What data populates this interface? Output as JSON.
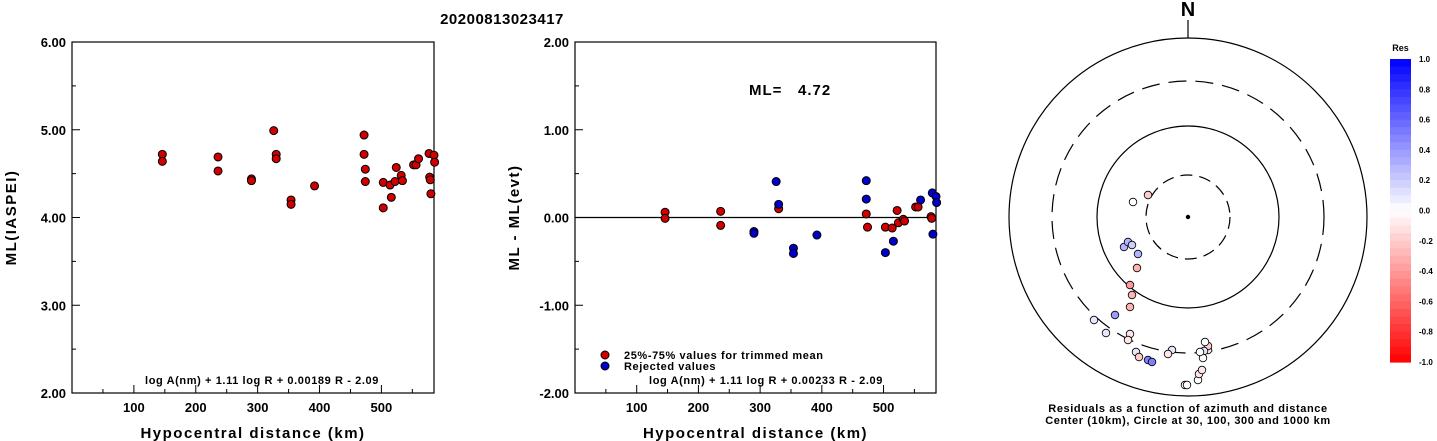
{
  "page_title": "20200813023417",
  "chart_data": [
    {
      "type": "scatter",
      "title": "",
      "xlabel": "Hypocentral distance (km)",
      "ylabel": "ML(IASPEI)",
      "xlim": [
        0,
        585
      ],
      "ylim": [
        2.0,
        6.0
      ],
      "x_ticks": [
        "100",
        "200",
        "300",
        "400",
        "500"
      ],
      "y_ticks": [
        "6.00",
        "5.00",
        "4.00",
        "3.00",
        "2.00"
      ],
      "formula": "log A(nm) + 1.11 log R + 0.00189 R - 2.09",
      "series": [
        {
          "color": "#d00000",
          "points": [
            [
              146,
              4.72
            ],
            [
              146,
              4.64
            ],
            [
              236,
              4.69
            ],
            [
              236,
              4.53
            ],
            [
              290,
              4.44
            ],
            [
              290,
              4.42
            ],
            [
              326,
              4.99
            ],
            [
              330,
              4.72
            ],
            [
              330,
              4.67
            ],
            [
              354,
              4.2
            ],
            [
              354,
              4.15
            ],
            [
              392,
              4.36
            ],
            [
              472,
              4.94
            ],
            [
              472,
              4.72
            ],
            [
              474,
              4.55
            ],
            [
              474,
              4.41
            ],
            [
              503,
              4.4
            ],
            [
              503,
              4.11
            ],
            [
              514,
              4.37
            ],
            [
              516,
              4.23
            ],
            [
              522,
              4.41
            ],
            [
              524,
              4.57
            ],
            [
              532,
              4.48
            ],
            [
              534,
              4.42
            ],
            [
              552,
              4.6
            ],
            [
              556,
              4.6
            ],
            [
              560,
              4.67
            ],
            [
              577,
              4.73
            ],
            [
              578,
              4.46
            ],
            [
              579,
              4.43
            ],
            [
              580,
              4.27
            ],
            [
              585,
              4.71
            ],
            [
              586,
              4.63
            ]
          ]
        }
      ]
    },
    {
      "type": "scatter",
      "title": "",
      "xlabel": "Hypocentral distance (km)",
      "ylabel": "ML - ML(evt)",
      "xlim": [
        0,
        585
      ],
      "ylim": [
        -2.0,
        2.0
      ],
      "x_ticks": [
        "100",
        "200",
        "300",
        "400",
        "500"
      ],
      "y_ticks": [
        "2.00",
        "1.00",
        "0.00",
        "-1.00",
        "-2.00"
      ],
      "ml_label": "ML=",
      "ml_value": "4.72",
      "formula": "log A(nm) + 1.11 log R + 0.00233 R - 2.09",
      "legend_position": "bottom-left",
      "series": [
        {
          "name": "25%-75% values for trimmed mean",
          "color": "#d00000",
          "points": [
            [
              146,
              0.06
            ],
            [
              146,
              -0.01
            ],
            [
              236,
              0.07
            ],
            [
              236,
              -0.09
            ],
            [
              330,
              0.1
            ],
            [
              472,
              0.04
            ],
            [
              474,
              -0.11
            ],
            [
              503,
              -0.11
            ],
            [
              514,
              -0.12
            ],
            [
              522,
              0.08
            ],
            [
              524,
              -0.06
            ],
            [
              532,
              -0.02
            ],
            [
              534,
              -0.04
            ],
            [
              552,
              0.12
            ],
            [
              556,
              0.12
            ],
            [
              577,
              0.01
            ],
            [
              578,
              -0.01
            ]
          ]
        },
        {
          "name": "Rejected values",
          "color": "#0000cc",
          "points": [
            [
              290,
              -0.16
            ],
            [
              290,
              -0.18
            ],
            [
              326,
              0.41
            ],
            [
              330,
              0.15
            ],
            [
              354,
              -0.35
            ],
            [
              354,
              -0.41
            ],
            [
              392,
              -0.2
            ],
            [
              472,
              0.42
            ],
            [
              472,
              0.21
            ],
            [
              503,
              -0.4
            ],
            [
              516,
              -0.27
            ],
            [
              560,
              0.2
            ],
            [
              579,
              0.28
            ],
            [
              580,
              -0.19
            ],
            [
              585,
              0.24
            ],
            [
              586,
              0.17
            ]
          ]
        }
      ]
    },
    {
      "type": "scatter",
      "title": "",
      "north_label": "N",
      "caption_line1": "Residuals as a function of azimuth and distance",
      "caption_line2": "Center (10km), Circle at 30, 100, 300 and 1000 km",
      "colorbar_title": "Res",
      "colorbar_ticks": [
        "1.0",
        "0.8",
        "0.6",
        "0.4",
        "0.2",
        "0.0",
        "-0.2",
        "-0.4",
        "-0.6",
        "-0.8",
        "-1.0"
      ],
      "points_xy": [
        [
          -55,
          15
        ],
        [
          -40,
          22
        ],
        [
          -64,
          -30
        ],
        [
          -60,
          -25
        ],
        [
          -56,
          -28
        ],
        [
          -50,
          -37
        ],
        [
          -51,
          -51
        ],
        [
          -58,
          -68
        ],
        [
          -56,
          -78
        ],
        [
          -58,
          -90
        ],
        [
          -73,
          -98
        ],
        [
          -94,
          -103
        ],
        [
          -82,
          -116
        ],
        [
          -58,
          -117
        ],
        [
          -60,
          -123
        ],
        [
          -52,
          -135
        ],
        [
          -49,
          -140
        ],
        [
          -40,
          -143
        ],
        [
          -36,
          -145
        ],
        [
          -3,
          -168
        ],
        [
          -1,
          -168
        ],
        [
          10,
          -163
        ],
        [
          11,
          -157
        ],
        [
          14,
          -153
        ],
        [
          20,
          -133
        ],
        [
          20,
          -129
        ],
        [
          17,
          -125
        ],
        [
          16,
          -134
        ],
        [
          -16,
          -133
        ],
        [
          -20,
          -137
        ],
        [
          15,
          -141
        ],
        [
          12,
          -135
        ]
      ],
      "points_res": [
        0.0,
        -0.2,
        0.3,
        0.3,
        0.2,
        0.3,
        -0.3,
        -0.4,
        -0.3,
        -0.3,
        0.4,
        0.1,
        0.1,
        -0.1,
        -0.1,
        0.1,
        -0.2,
        0.5,
        0.5,
        0.0,
        0.0,
        0.0,
        -0.1,
        -0.1,
        -0.1,
        -0.2,
        0.0,
        0.1,
        0.1,
        -0.1,
        0.0,
        0.0
      ]
    }
  ]
}
